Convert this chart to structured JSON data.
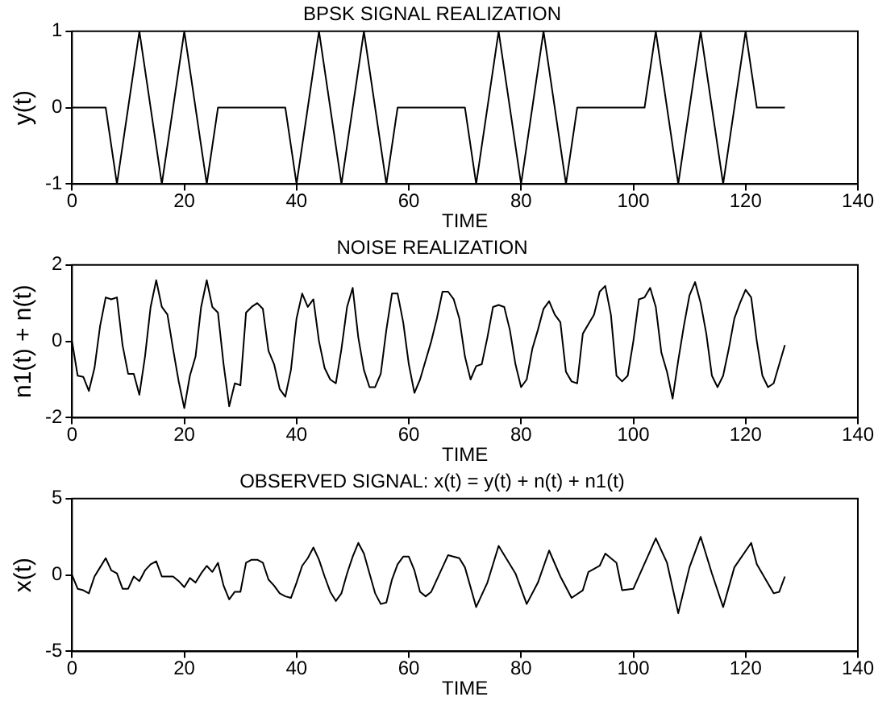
{
  "chart_data": [
    {
      "type": "line",
      "title": "BPSK SIGNAL REALIZATION",
      "xlabel": "TIME",
      "ylabel": "y(t)",
      "xlim": [
        0,
        140
      ],
      "xticks": [
        0,
        20,
        40,
        60,
        80,
        100,
        120,
        140
      ],
      "ylim": [
        -1,
        1
      ],
      "yticks": [
        -1,
        0,
        1
      ],
      "grid": false,
      "legend": false,
      "marker": "none",
      "line_style": "solid",
      "series": [
        {
          "color": "#000000",
          "x": [
            0,
            6,
            8,
            10,
            12,
            14,
            16,
            18,
            20,
            22,
            24,
            26,
            38,
            40,
            42,
            44,
            46,
            48,
            50,
            52,
            54,
            56,
            58,
            70,
            72,
            74,
            76,
            78,
            80,
            82,
            84,
            86,
            88,
            90,
            102,
            104,
            106,
            108,
            110,
            112,
            114,
            116,
            118,
            120,
            122,
            127
          ],
          "values": [
            0,
            0,
            -1,
            0,
            1,
            0,
            -1,
            0,
            1,
            0,
            -1,
            0,
            0,
            -1,
            0,
            1,
            0,
            -1,
            0,
            1,
            0,
            -1,
            0,
            0,
            -1,
            0,
            1,
            0,
            -1,
            0,
            1,
            0,
            -1,
            0,
            0,
            1,
            0,
            -1,
            0,
            1,
            0,
            -1,
            0,
            1,
            0,
            0
          ]
        }
      ]
    },
    {
      "type": "line",
      "title": "NOISE REALIZATION",
      "xlabel": "TIME",
      "ylabel": "n1(t) + n(t)",
      "xlim": [
        0,
        140
      ],
      "xticks": [
        0,
        20,
        40,
        60,
        80,
        100,
        120,
        140
      ],
      "ylim": [
        -2,
        2
      ],
      "yticks": [
        -2,
        0,
        2
      ],
      "grid": false,
      "legend": false,
      "marker": "none",
      "line_style": "solid",
      "series": [
        {
          "color": "#000000",
          "x": [
            0,
            1,
            2,
            3,
            4,
            5,
            6,
            7,
            8,
            9,
            10,
            11,
            12,
            13,
            14,
            15,
            16,
            17,
            18,
            19,
            20,
            21,
            22,
            23,
            24,
            25,
            26,
            27,
            28,
            29,
            30,
            31,
            32,
            33,
            34,
            35,
            36,
            37,
            38,
            39,
            40,
            41,
            42,
            43,
            44,
            45,
            46,
            47,
            48,
            49,
            50,
            51,
            52,
            53,
            54,
            55,
            56,
            57,
            58,
            59,
            60,
            61,
            62,
            63,
            64,
            65,
            66,
            67,
            68,
            69,
            70,
            71,
            72,
            73,
            74,
            75,
            76,
            77,
            78,
            79,
            80,
            81,
            82,
            83,
            84,
            85,
            86,
            87,
            88,
            89,
            90,
            91,
            92,
            93,
            94,
            95,
            96,
            97,
            98,
            99,
            100,
            101,
            102,
            103,
            104,
            105,
            106,
            107,
            108,
            109,
            110,
            111,
            112,
            113,
            114,
            115,
            116,
            117,
            118,
            119,
            120,
            121,
            122,
            123,
            124,
            125,
            126,
            127
          ],
          "values": [
            0,
            -0.9,
            -0.93,
            -1.3,
            -0.7,
            0.4,
            1.15,
            1.1,
            1.15,
            -0.1,
            -0.85,
            -0.85,
            -1.4,
            -0.4,
            0.9,
            1.6,
            0.9,
            0.7,
            -0.2,
            -1.05,
            -1.75,
            -0.9,
            -0.4,
            0.9,
            1.6,
            0.9,
            0.75,
            -0.6,
            -1.7,
            -1.1,
            -1.15,
            0.75,
            0.9,
            1.0,
            0.85,
            -0.25,
            -0.6,
            -1.25,
            -1.45,
            -0.75,
            0.6,
            1.25,
            0.9,
            1.1,
            0,
            -0.7,
            -1.0,
            -1.1,
            -0.2,
            0.9,
            1.4,
            0.1,
            -0.75,
            -1.2,
            -1.2,
            -0.85,
            0.3,
            1.25,
            1.25,
            0.5,
            -0.6,
            -1.35,
            -1.0,
            -0.5,
            0.0,
            0.6,
            1.3,
            1.3,
            1.1,
            0.6,
            -0.4,
            -1.0,
            -0.65,
            -0.6,
            0.1,
            0.9,
            0.95,
            0.9,
            0.3,
            -0.6,
            -1.2,
            -1.0,
            -0.2,
            0.3,
            0.85,
            1.05,
            0.7,
            0.5,
            -0.8,
            -1.05,
            -1.1,
            0.2,
            0.45,
            0.7,
            1.3,
            1.45,
            0.7,
            -0.9,
            -1.05,
            -0.9,
            0.0,
            1.1,
            1.15,
            1.4,
            0.9,
            -0.3,
            -0.8,
            -1.5,
            -0.5,
            0.4,
            1.2,
            1.55,
            1.0,
            0.2,
            -0.9,
            -1.2,
            -0.9,
            -0.2,
            0.6,
            1.0,
            1.35,
            1.15,
            0.0,
            -0.9,
            -1.2,
            -1.1,
            -0.6,
            -0.1
          ]
        }
      ]
    },
    {
      "type": "line",
      "title": "OBSERVED SIGNAL: x(t) = y(t) + n(t) + n1(t)",
      "xlabel": "TIME",
      "ylabel": "x(t)",
      "xlim": [
        0,
        140
      ],
      "xticks": [
        0,
        20,
        40,
        60,
        80,
        100,
        120,
        140
      ],
      "ylim": [
        -5,
        5
      ],
      "yticks": [
        -5,
        0,
        5
      ],
      "grid": false,
      "legend": false,
      "marker": "none",
      "line_style": "solid",
      "series": [
        {
          "color": "#000000",
          "x": [
            0,
            1,
            2,
            3,
            4,
            5,
            6,
            7,
            8,
            9,
            10,
            11,
            12,
            13,
            14,
            15,
            16,
            17,
            18,
            19,
            20,
            21,
            22,
            23,
            24,
            25,
            26,
            27,
            28,
            29,
            30,
            31,
            32,
            33,
            34,
            35,
            36,
            37,
            38,
            39,
            40,
            41,
            42,
            43,
            44,
            45,
            46,
            47,
            48,
            49,
            50,
            51,
            52,
            53,
            54,
            55,
            56,
            57,
            58,
            59,
            60,
            61,
            62,
            63,
            64,
            67,
            69,
            70,
            72,
            74,
            76,
            79,
            81,
            83,
            85,
            87,
            89,
            91,
            92,
            94,
            95,
            97,
            98,
            100,
            104,
            106,
            108,
            110,
            112,
            114,
            116,
            118,
            121,
            122,
            125,
            126,
            127
          ],
          "values": [
            0,
            -0.9,
            -1.0,
            -1.2,
            -0.1,
            0.5,
            1.1,
            0.3,
            0.1,
            -0.9,
            -0.9,
            -0.1,
            -0.4,
            0.3,
            0.7,
            0.9,
            -0.1,
            -0.1,
            -0.1,
            -0.4,
            -0.8,
            -0.2,
            -0.5,
            0.1,
            0.6,
            0.2,
            0.8,
            -0.7,
            -1.6,
            -1.1,
            -1.1,
            0.8,
            1.0,
            1.0,
            0.8,
            -0.3,
            -0.7,
            -1.2,
            -1.4,
            -1.5,
            -0.5,
            0.6,
            1.1,
            1.8,
            1.0,
            -0.1,
            -1.1,
            -1.7,
            -1.2,
            0.1,
            1.2,
            2.1,
            1.4,
            0.1,
            -1.2,
            -1.9,
            -1.8,
            -0.3,
            0.7,
            1.2,
            1.2,
            0.3,
            -1.1,
            -1.4,
            -1.1,
            1.3,
            1.1,
            0.5,
            -2.1,
            -0.5,
            1.9,
            0.1,
            -1.9,
            -0.5,
            1.6,
            -0.1,
            -1.5,
            -1.0,
            0.2,
            0.6,
            1.4,
            0.8,
            -1.0,
            -0.9,
            2.4,
            0.8,
            -2.5,
            0.5,
            2.5,
            0.1,
            -2.1,
            0.5,
            2.1,
            0.7,
            -1.2,
            -1.1,
            -0.1
          ]
        }
      ]
    }
  ]
}
